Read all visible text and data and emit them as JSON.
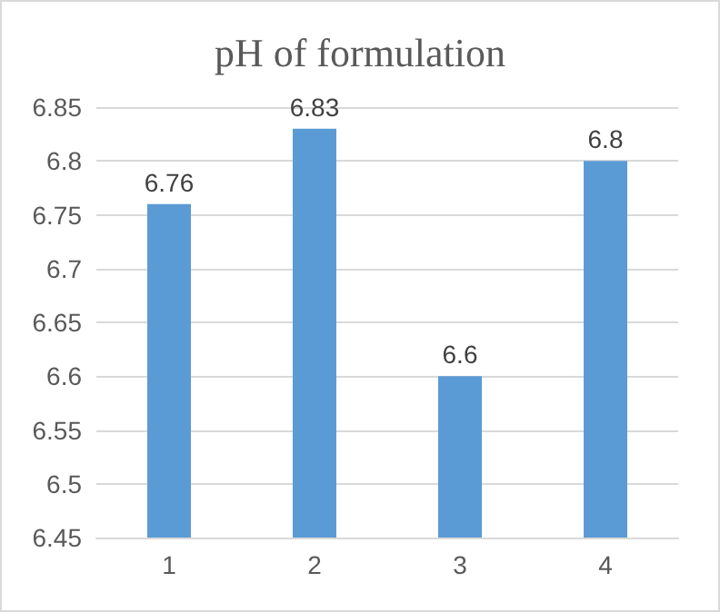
{
  "chart_data": {
    "type": "bar",
    "title": "pH of formulation",
    "categories": [
      "1",
      "2",
      "3",
      "4"
    ],
    "values": [
      6.76,
      6.83,
      6.6,
      6.8
    ],
    "color": "#5b9bd5",
    "ylim": [
      6.45,
      6.85
    ],
    "yticks": [
      6.45,
      6.5,
      6.55,
      6.6,
      6.65,
      6.7,
      6.75,
      6.8,
      6.85
    ],
    "grid": "y",
    "data_labels": true
  }
}
